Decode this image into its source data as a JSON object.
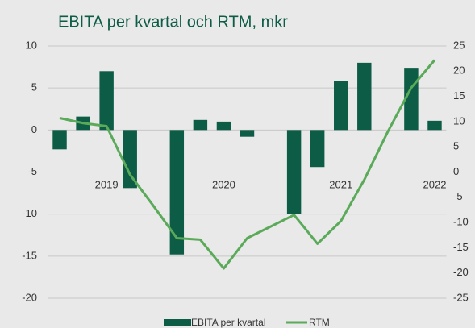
{
  "chart_data": {
    "type": "bar_line",
    "title": "EBITA per kvartal och RTM, mkr",
    "categories": [
      null,
      null,
      "2019",
      null,
      null,
      null,
      null,
      "2020",
      null,
      null,
      null,
      null,
      "2021",
      null,
      null,
      null,
      "2022"
    ],
    "series": [
      {
        "name": "EBITA per kvartal",
        "color": "#0d5c46",
        "type": "bar",
        "values": [
          -2.3,
          1.6,
          7.0,
          -6.9,
          null,
          -14.8,
          1.2,
          1.0,
          -0.8,
          null,
          -10.0,
          -4.4,
          5.8,
          8.0,
          null,
          7.4,
          1.1
        ]
      },
      {
        "name": "RTM",
        "color": "#5aaa5a",
        "type": "line",
        "axis": "y2",
        "values": [
          10.7,
          9.7,
          9.1,
          -0.5,
          -6.7,
          -13.1,
          -13.4,
          -19.1,
          -13.1,
          -10.8,
          -8.5,
          -14.2,
          -9.7,
          -1.5,
          8.0,
          16.7,
          22.2
        ]
      }
    ],
    "ylim": [
      -20,
      10
    ],
    "yticks": [
      10,
      5,
      0,
      -5,
      -10,
      -15,
      -20
    ],
    "y2lim": [
      -25,
      25
    ],
    "y2ticks": [
      25,
      20,
      15,
      10,
      5,
      0,
      -5,
      -10,
      -15,
      -20,
      -25
    ],
    "grid": true,
    "legend": "bottom"
  }
}
